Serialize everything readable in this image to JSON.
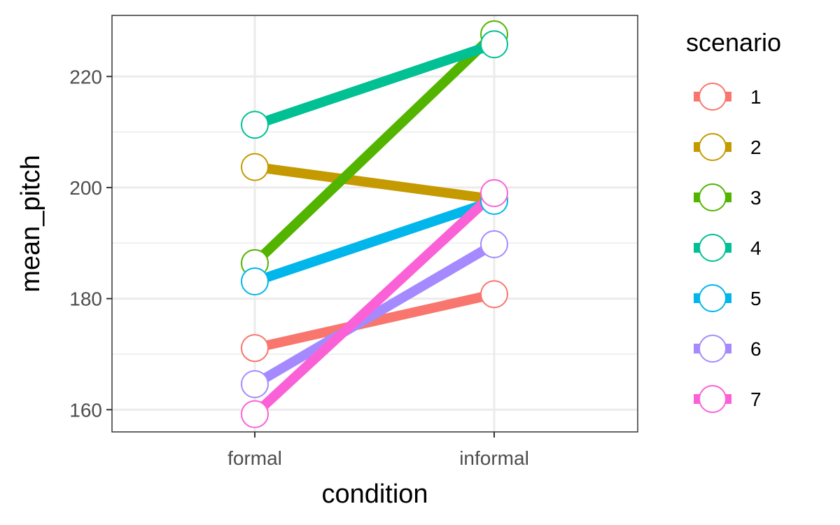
{
  "chart_data": {
    "type": "line",
    "title": "",
    "xlabel": "condition",
    "ylabel": "mean_pitch",
    "categories": [
      "formal",
      "informal"
    ],
    "ylim": [
      156,
      231
    ],
    "yticks": [
      160,
      180,
      200,
      220
    ],
    "grid": true,
    "legend": {
      "title": "scenario",
      "placement": "right"
    },
    "series": [
      {
        "name": "1",
        "color": "#F8766D",
        "values": [
          171.1,
          180.8
        ]
      },
      {
        "name": "2",
        "color": "#C49A00",
        "values": [
          203.7,
          197.9
        ]
      },
      {
        "name": "3",
        "color": "#53B400",
        "values": [
          186.4,
          227.6
        ]
      },
      {
        "name": "4",
        "color": "#00C094",
        "values": [
          211.3,
          225.8
        ]
      },
      {
        "name": "5",
        "color": "#00B6EB",
        "values": [
          183.1,
          197.6
        ]
      },
      {
        "name": "6",
        "color": "#A58AFF",
        "values": [
          164.6,
          189.8
        ]
      },
      {
        "name": "7",
        "color": "#FB61D7",
        "values": [
          159.2,
          199.0
        ]
      }
    ]
  }
}
